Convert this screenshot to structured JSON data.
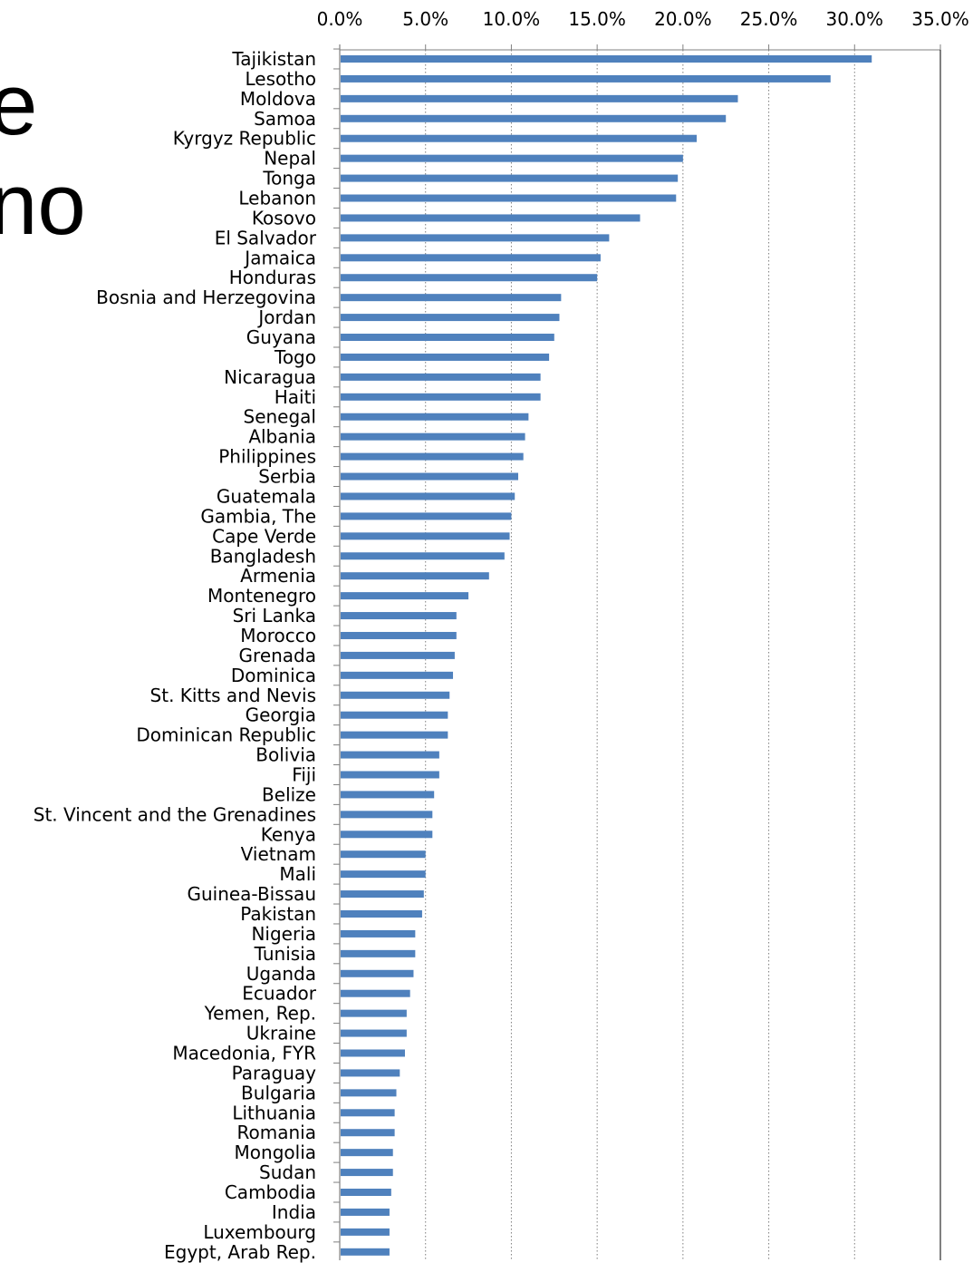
{
  "background_text": [
    "e",
    "no"
  ],
  "colors": {
    "bar": "#4F81BD",
    "grid": "#7f7f7f",
    "axis": "#808080"
  },
  "chart_data": {
    "type": "bar",
    "orientation": "horizontal",
    "title": "",
    "xlabel": "",
    "ylabel": "",
    "xlim": [
      0,
      35
    ],
    "x_ticks": [
      "0.0%",
      "5.0%",
      "10.0%",
      "15.0%",
      "20.0%",
      "25.0%",
      "30.0%",
      "35.0%"
    ],
    "x_axis_position": "top",
    "grid": "vertical dotted",
    "legend": "none",
    "categories": [
      "Tajikistan",
      "Lesotho",
      "Moldova",
      "Samoa",
      "Kyrgyz Republic",
      "Nepal",
      "Tonga",
      "Lebanon",
      "Kosovo",
      "El Salvador",
      "Jamaica",
      "Honduras",
      "Bosnia and Herzegovina",
      "Jordan",
      "Guyana",
      "Togo",
      "Nicaragua",
      "Haiti",
      "Senegal",
      "Albania",
      "Philippines",
      "Serbia",
      "Guatemala",
      "Gambia, The",
      "Cape Verde",
      "Bangladesh",
      "Armenia",
      "Montenegro",
      "Sri Lanka",
      "Morocco",
      "Grenada",
      "Dominica",
      "St. Kitts and Nevis",
      "Georgia",
      "Dominican Republic",
      "Bolivia",
      "Fiji",
      "Belize",
      "St. Vincent and the Grenadines",
      "Kenya",
      "Vietnam",
      "Mali",
      "Guinea-Bissau",
      "Pakistan",
      "Nigeria",
      "Tunisia",
      "Uganda",
      "Ecuador",
      "Yemen, Rep.",
      "Ukraine",
      "Macedonia, FYR",
      "Paraguay",
      "Bulgaria",
      "Lithuania",
      "Romania",
      "Mongolia",
      "Sudan",
      "Cambodia",
      "India",
      "Luxembourg",
      "Egypt, Arab Rep."
    ],
    "values": [
      31.0,
      28.6,
      23.2,
      22.5,
      20.8,
      20.0,
      19.7,
      19.6,
      17.5,
      15.7,
      15.2,
      15.0,
      12.9,
      12.8,
      12.5,
      12.2,
      11.7,
      11.7,
      11.0,
      10.8,
      10.7,
      10.4,
      10.2,
      10.0,
      9.9,
      9.6,
      8.7,
      7.5,
      6.8,
      6.8,
      6.7,
      6.6,
      6.4,
      6.3,
      6.3,
      5.8,
      5.8,
      5.5,
      5.4,
      5.4,
      5.0,
      5.0,
      4.9,
      4.8,
      4.4,
      4.4,
      4.3,
      4.1,
      3.9,
      3.9,
      3.8,
      3.5,
      3.3,
      3.2,
      3.2,
      3.1,
      3.1,
      3.0,
      2.9,
      2.9,
      2.9
    ]
  }
}
